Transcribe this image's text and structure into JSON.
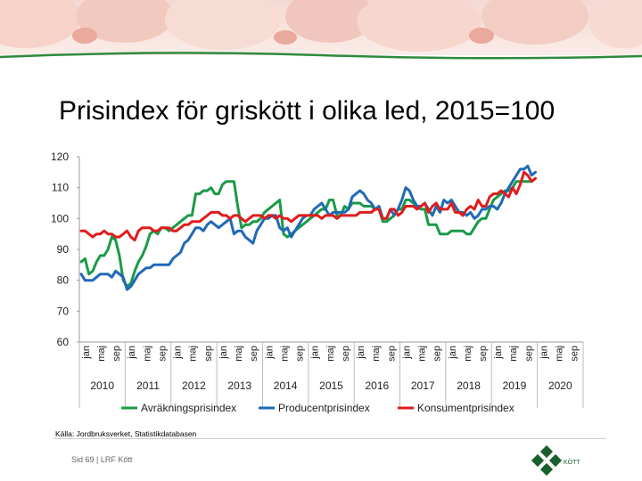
{
  "title": "Prisindex för griskött i olika led, 2015=100",
  "source": "Källa: Jordbruksverket, Statistikdatabasen",
  "footer": {
    "page_label": "Sid 69 | LRF Kött"
  },
  "logo": {
    "text": "KÖTT"
  },
  "colors": {
    "green": "#1a9a48",
    "blue": "#1f6ab8",
    "red": "#e01c1c",
    "banner_rule": "#2f8a3d"
  },
  "chart_data": {
    "type": "line",
    "title": "Prisindex för griskött i olika led, 2015=100",
    "xlabel": "",
    "ylabel": "",
    "ylim": [
      60,
      120
    ],
    "yticks": [
      60,
      70,
      80,
      90,
      100,
      110,
      120
    ],
    "years": [
      "2010",
      "2011",
      "2012",
      "2013",
      "2014",
      "2015",
      "2016",
      "2017",
      "2018",
      "2019",
      "2020"
    ],
    "month_labels": [
      "jan",
      "maj",
      "sep"
    ],
    "grid": false,
    "legend_position": "bottom",
    "months_per_year": 12,
    "series": [
      {
        "name": "Avräkningsprisindex",
        "color": "#1a9a48",
        "values": [
          86,
          87,
          82,
          83,
          86,
          88,
          88,
          90,
          94,
          93,
          88,
          80,
          78,
          79,
          83,
          86,
          88,
          91,
          95,
          96,
          95,
          97,
          97,
          96,
          97,
          98,
          99,
          100,
          101,
          101,
          108,
          108,
          109,
          109,
          110,
          108,
          108,
          111,
          112,
          112,
          112,
          104,
          97,
          98,
          98,
          99,
          99,
          100,
          102,
          103,
          104,
          105,
          106,
          95,
          94,
          95,
          96,
          97,
          98,
          99,
          100,
          101,
          102,
          103,
          103,
          106,
          106,
          101,
          101,
          104,
          103,
          105,
          105,
          105,
          104,
          104,
          104,
          103,
          103,
          99,
          99,
          100,
          101,
          103,
          103,
          106,
          106,
          105,
          104,
          103,
          103,
          98,
          98,
          98,
          95,
          95,
          95,
          96,
          96,
          96,
          96,
          95,
          95,
          97,
          99,
          100,
          100,
          103,
          106,
          107,
          108,
          109,
          109,
          110,
          112,
          112,
          112,
          112,
          112,
          113
        ]
      },
      {
        "name": "Producentprisindex",
        "color": "#1f6ab8",
        "values": [
          82,
          80,
          80,
          80,
          81,
          82,
          82,
          82,
          81,
          83,
          82,
          81,
          77,
          78,
          80,
          82,
          83,
          84,
          84,
          85,
          85,
          85,
          85,
          85,
          87,
          88,
          89,
          92,
          93,
          95,
          97,
          97,
          96,
          98,
          99,
          98,
          97,
          98,
          99,
          100,
          95,
          96,
          96,
          94,
          93,
          92,
          96,
          98,
          100,
          100,
          101,
          101,
          97,
          96,
          97,
          94,
          96,
          98,
          100,
          101,
          101,
          103,
          104,
          105,
          103,
          101,
          102,
          102,
          102,
          102,
          103,
          107,
          108,
          109,
          108,
          106,
          105,
          103,
          104,
          100,
          100,
          103,
          101,
          103,
          106,
          110,
          109,
          106,
          104,
          104,
          105,
          103,
          101,
          104,
          102,
          106,
          105,
          106,
          104,
          102,
          102,
          101,
          102,
          100,
          101,
          103,
          103,
          104,
          104,
          103,
          105,
          108,
          110,
          112,
          114,
          116,
          116,
          117,
          114,
          115
        ]
      },
      {
        "name": "Konsumentprisindex",
        "color": "#e01c1c",
        "values": [
          96,
          96,
          95,
          94,
          95,
          95,
          96,
          95,
          95,
          94,
          94,
          95,
          96,
          94,
          93,
          96,
          97,
          97,
          97,
          96,
          96,
          97,
          97,
          97,
          96,
          96,
          97,
          98,
          98,
          99,
          99,
          99,
          100,
          101,
          102,
          102,
          102,
          101,
          101,
          100,
          101,
          101,
          100,
          99,
          100,
          101,
          101,
          101,
          100,
          101,
          101,
          100,
          101,
          100,
          100,
          99,
          100,
          101,
          101,
          101,
          101,
          101,
          101,
          100,
          101,
          101,
          101,
          100,
          101,
          101,
          101,
          101,
          101,
          102,
          102,
          102,
          102,
          103,
          103,
          100,
          100,
          103,
          103,
          101,
          102,
          104,
          104,
          104,
          103,
          104,
          105,
          102,
          104,
          105,
          103,
          103,
          103,
          105,
          102,
          102,
          101,
          103,
          104,
          103,
          106,
          104,
          104,
          107,
          108,
          108,
          109,
          108,
          107,
          110,
          108,
          111,
          115,
          114,
          112,
          113
        ]
      }
    ]
  }
}
